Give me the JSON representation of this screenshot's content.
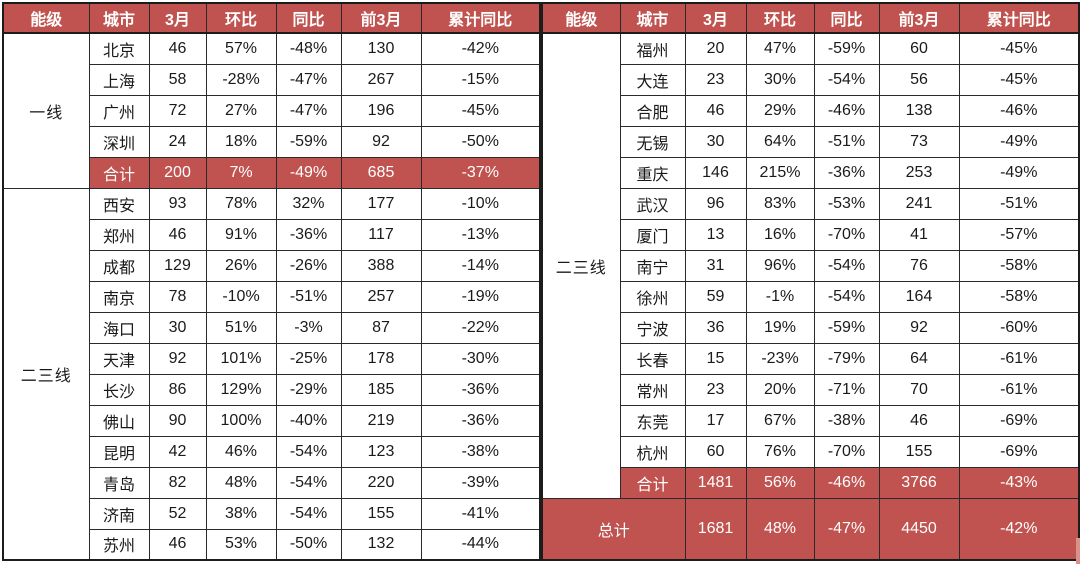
{
  "colors": {
    "accent": "#c0534f",
    "header_text": "#ffffff",
    "body_text": "#1a1a1a",
    "border": "#1c1c1c"
  },
  "header": {
    "labels": [
      "能级",
      "城市",
      "3月",
      "环比",
      "同比",
      "前3月",
      "累计同比"
    ]
  },
  "left_table": {
    "groups": [
      {
        "tier": "一线",
        "rows": [
          {
            "city": "北京",
            "cells": [
              "46",
              "57%",
              "-48%",
              "130",
              "-42%"
            ]
          },
          {
            "city": "上海",
            "cells": [
              "58",
              "-28%",
              "-47%",
              "267",
              "-15%"
            ]
          },
          {
            "city": "广州",
            "cells": [
              "72",
              "27%",
              "-47%",
              "196",
              "-45%"
            ]
          },
          {
            "city": "深圳",
            "cells": [
              "24",
              "18%",
              "-59%",
              "92",
              "-50%"
            ]
          },
          {
            "city": "合计",
            "cells": [
              "200",
              "7%",
              "-49%",
              "685",
              "-37%"
            ],
            "subtotal": true
          }
        ]
      },
      {
        "tier": "二三线",
        "rows": [
          {
            "city": "西安",
            "cells": [
              "93",
              "78%",
              "32%",
              "177",
              "-10%"
            ]
          },
          {
            "city": "郑州",
            "cells": [
              "46",
              "91%",
              "-36%",
              "117",
              "-13%"
            ]
          },
          {
            "city": "成都",
            "cells": [
              "129",
              "26%",
              "-26%",
              "388",
              "-14%"
            ]
          },
          {
            "city": "南京",
            "cells": [
              "78",
              "-10%",
              "-51%",
              "257",
              "-19%"
            ]
          },
          {
            "city": "海口",
            "cells": [
              "30",
              "51%",
              "-3%",
              "87",
              "-22%"
            ]
          },
          {
            "city": "天津",
            "cells": [
              "92",
              "101%",
              "-25%",
              "178",
              "-30%"
            ]
          },
          {
            "city": "长沙",
            "cells": [
              "86",
              "129%",
              "-29%",
              "185",
              "-36%"
            ]
          },
          {
            "city": "佛山",
            "cells": [
              "90",
              "100%",
              "-40%",
              "219",
              "-36%"
            ]
          },
          {
            "city": "昆明",
            "cells": [
              "42",
              "46%",
              "-54%",
              "123",
              "-38%"
            ]
          },
          {
            "city": "青岛",
            "cells": [
              "82",
              "48%",
              "-54%",
              "220",
              "-39%"
            ]
          },
          {
            "city": "济南",
            "cells": [
              "52",
              "38%",
              "-54%",
              "155",
              "-41%"
            ]
          },
          {
            "city": "苏州",
            "cells": [
              "46",
              "53%",
              "-50%",
              "132",
              "-44%"
            ]
          }
        ]
      }
    ]
  },
  "right_table": {
    "groups": [
      {
        "tier": "二三线",
        "rows": [
          {
            "city": "福州",
            "cells": [
              "20",
              "47%",
              "-59%",
              "60",
              "-45%"
            ]
          },
          {
            "city": "大连",
            "cells": [
              "23",
              "30%",
              "-54%",
              "56",
              "-45%"
            ]
          },
          {
            "city": "合肥",
            "cells": [
              "46",
              "29%",
              "-46%",
              "138",
              "-46%"
            ]
          },
          {
            "city": "无锡",
            "cells": [
              "30",
              "64%",
              "-51%",
              "73",
              "-49%"
            ]
          },
          {
            "city": "重庆",
            "cells": [
              "146",
              "215%",
              "-36%",
              "253",
              "-49%"
            ]
          },
          {
            "city": "武汉",
            "cells": [
              "96",
              "83%",
              "-53%",
              "241",
              "-51%"
            ]
          },
          {
            "city": "厦门",
            "cells": [
              "13",
              "16%",
              "-70%",
              "41",
              "-57%"
            ]
          },
          {
            "city": "南宁",
            "cells": [
              "31",
              "96%",
              "-54%",
              "76",
              "-58%"
            ]
          },
          {
            "city": "徐州",
            "cells": [
              "59",
              "-1%",
              "-54%",
              "164",
              "-58%"
            ]
          },
          {
            "city": "宁波",
            "cells": [
              "36",
              "19%",
              "-59%",
              "92",
              "-60%"
            ]
          },
          {
            "city": "长春",
            "cells": [
              "15",
              "-23%",
              "-79%",
              "64",
              "-61%"
            ]
          },
          {
            "city": "常州",
            "cells": [
              "23",
              "20%",
              "-71%",
              "70",
              "-61%"
            ]
          },
          {
            "city": "东莞",
            "cells": [
              "17",
              "67%",
              "-38%",
              "46",
              "-69%"
            ]
          },
          {
            "city": "杭州",
            "cells": [
              "60",
              "76%",
              "-70%",
              "155",
              "-69%"
            ]
          },
          {
            "city": "合计",
            "cells": [
              "1481",
              "56%",
              "-46%",
              "3766",
              "-43%"
            ],
            "subtotal": true
          }
        ]
      }
    ],
    "total": {
      "label": "总计",
      "cells": [
        "1681",
        "48%",
        "-47%",
        "4450",
        "-42%"
      ]
    }
  }
}
